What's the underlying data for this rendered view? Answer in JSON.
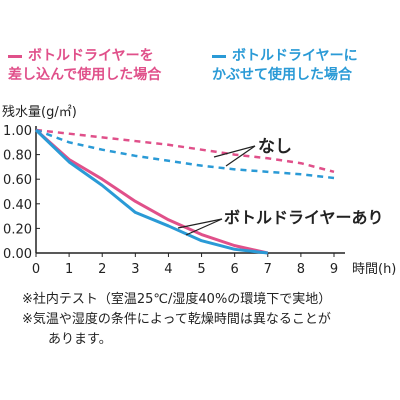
{
  "legend": {
    "pink": {
      "line1": "ボトルドライヤーを",
      "line2": "差し込んで使用した場合",
      "color": "#e0508a"
    },
    "blue": {
      "line1": "ボトルドライヤーに",
      "line2": "かぶせて使用した場合",
      "color": "#2a9ad6"
    }
  },
  "chart_data": {
    "type": "line",
    "ylabel": "残水量(g/㎡)",
    "xlabel": "時間(h)",
    "xlim": [
      0,
      9
    ],
    "ylim": [
      0,
      1.0
    ],
    "x_ticks": [
      "0",
      "1",
      "2",
      "3",
      "4",
      "5",
      "6",
      "7",
      "8",
      "9"
    ],
    "y_ticks": [
      "0.00",
      "0.20",
      "0.40",
      "0.60",
      "0.80",
      "1.00"
    ],
    "grid": false,
    "series": [
      {
        "group": "なし",
        "style": "dashed",
        "color": "#e0508a",
        "x": [
          0,
          1,
          2,
          3,
          4,
          5,
          6,
          7,
          8,
          9
        ],
        "y": [
          1.0,
          0.97,
          0.94,
          0.91,
          0.88,
          0.84,
          0.8,
          0.77,
          0.73,
          0.66
        ]
      },
      {
        "group": "なし",
        "style": "dashed",
        "color": "#2a9ad6",
        "x": [
          0,
          1,
          2,
          3,
          4,
          5,
          6,
          7,
          8,
          9
        ],
        "y": [
          1.0,
          0.9,
          0.84,
          0.79,
          0.75,
          0.71,
          0.68,
          0.66,
          0.64,
          0.61
        ]
      },
      {
        "group": "ボトルドライヤーあり",
        "style": "solid",
        "color": "#e0508a",
        "x": [
          0,
          1,
          2,
          3,
          4,
          5,
          6,
          7
        ],
        "y": [
          1.0,
          0.76,
          0.6,
          0.42,
          0.27,
          0.15,
          0.06,
          0.0
        ]
      },
      {
        "group": "ボトルドライヤーあり",
        "style": "solid",
        "color": "#2a9ad6",
        "x": [
          0,
          1,
          2,
          3,
          4,
          5,
          6,
          7
        ],
        "y": [
          1.0,
          0.74,
          0.55,
          0.33,
          0.22,
          0.1,
          0.03,
          0.0
        ]
      }
    ],
    "annotations": [
      "なし",
      "ボトルドライヤーあり"
    ]
  },
  "notes": {
    "line1": "※社内テスト（室温25℃/湿度40%の環境下で実地）",
    "line2": "※気温や湿度の条件によって乾燥時間は異なることが",
    "line3": "あります。"
  }
}
